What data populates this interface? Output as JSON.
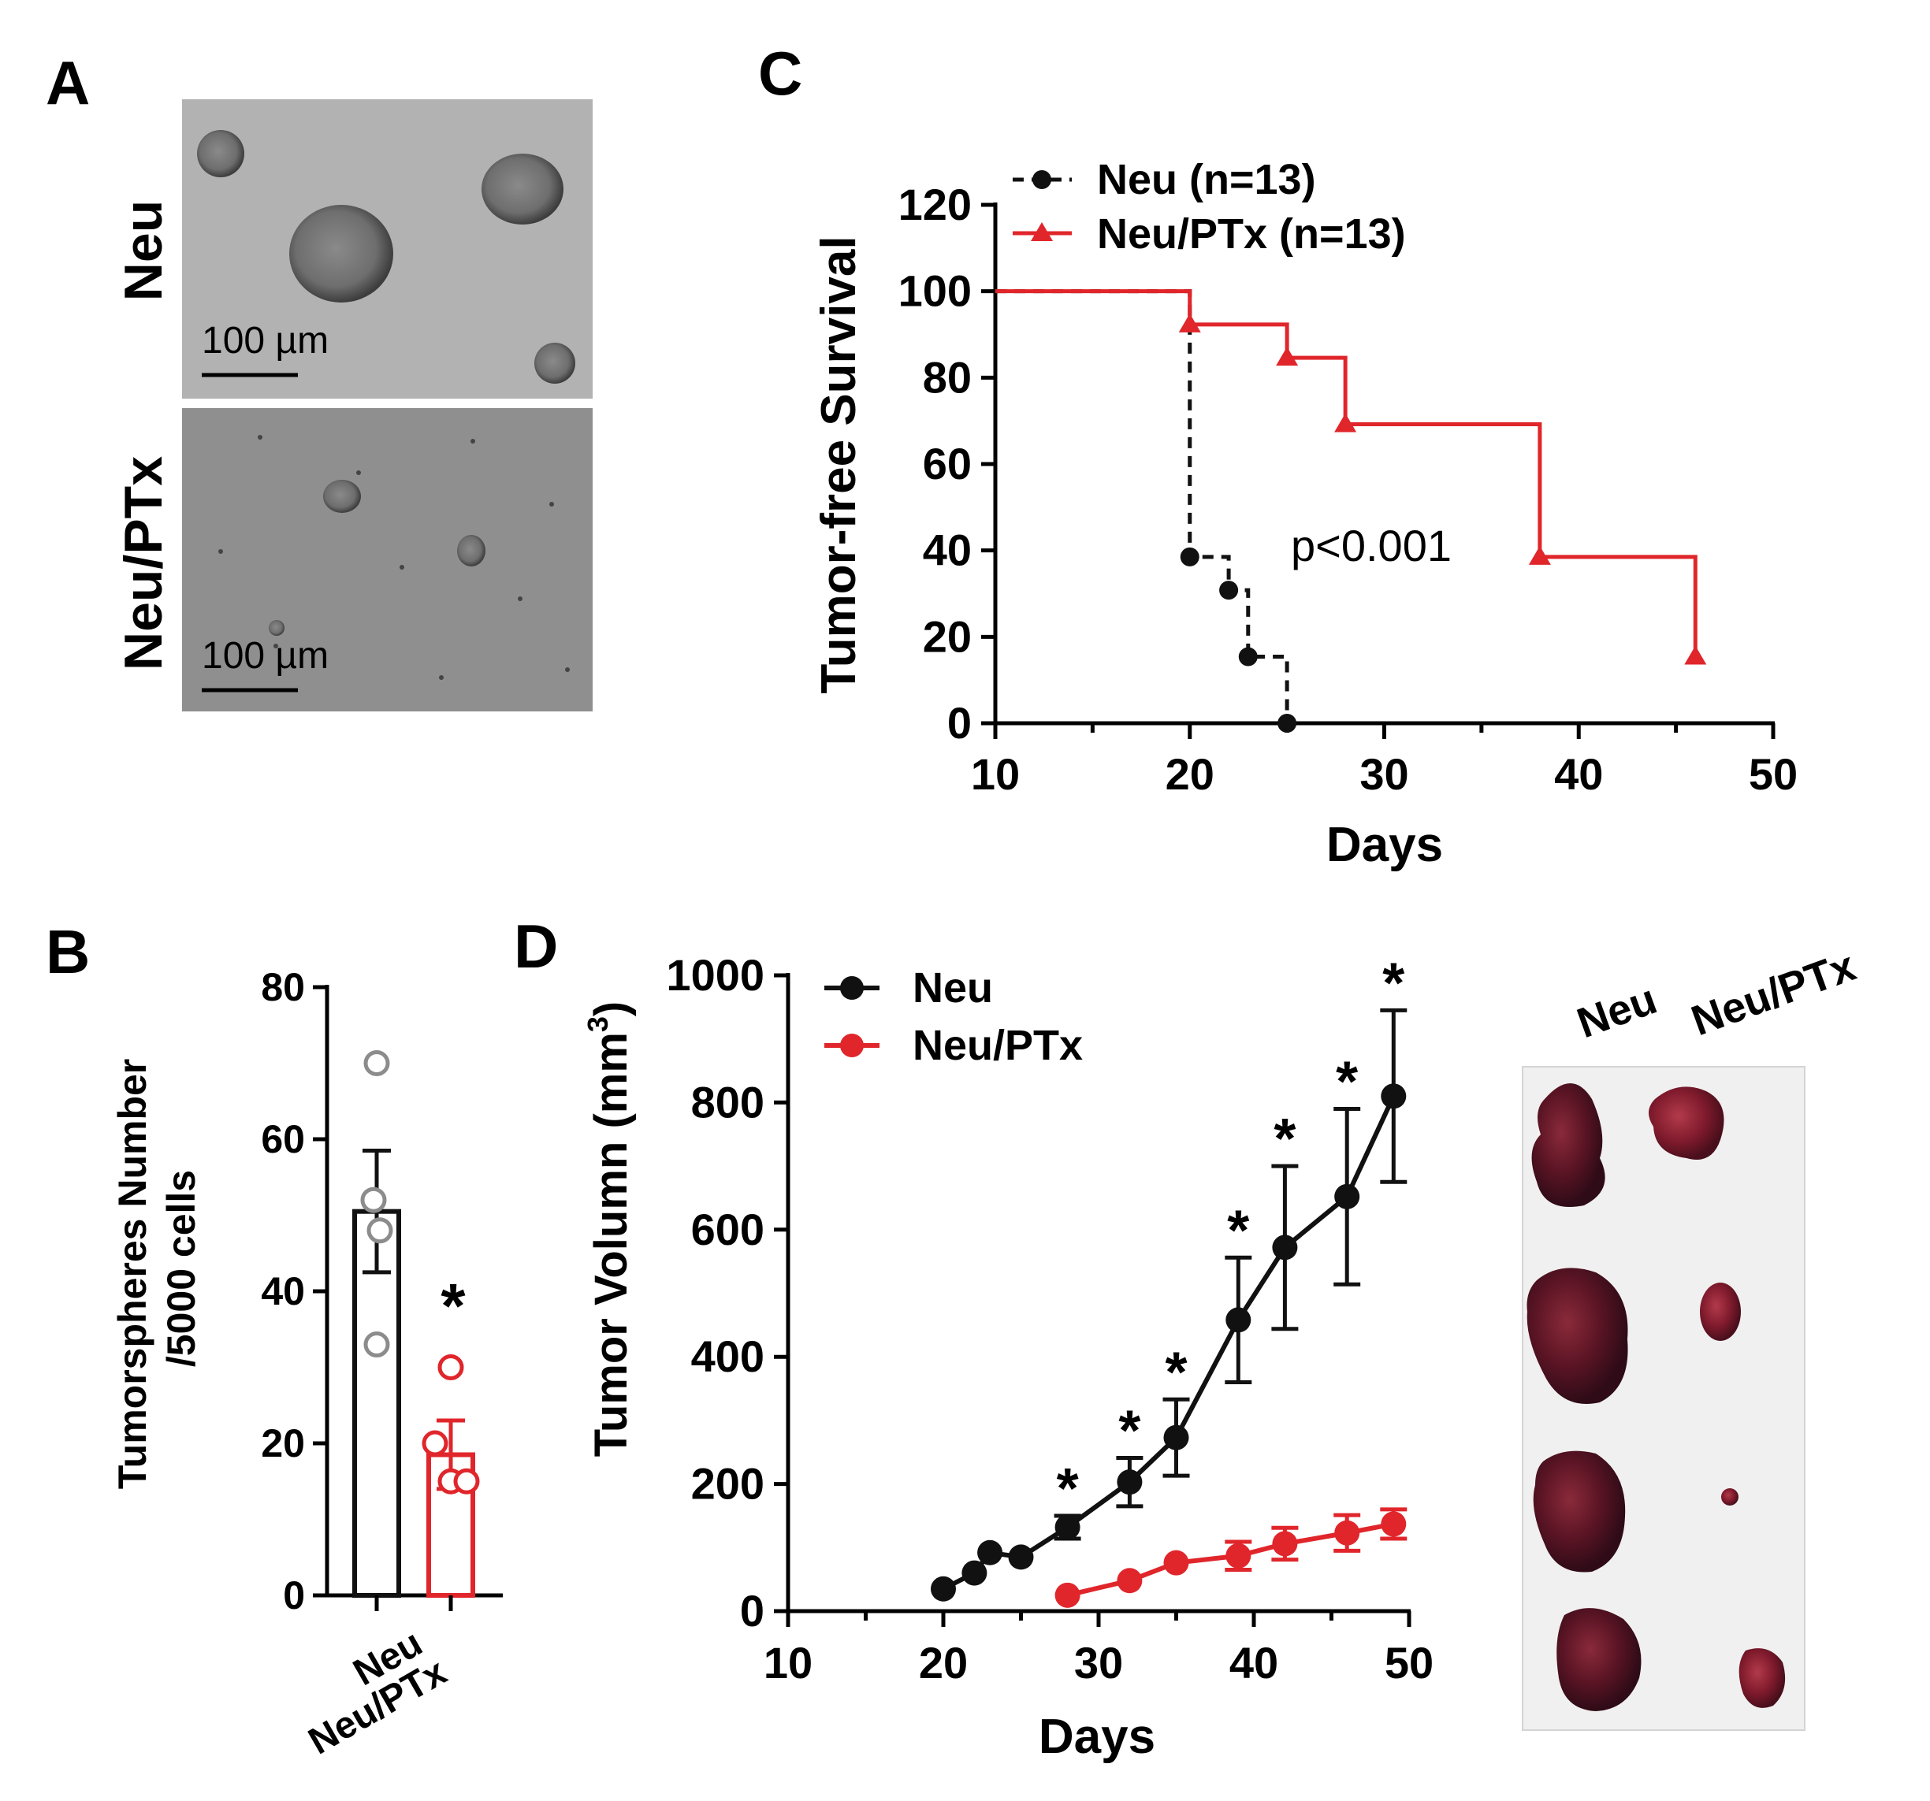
{
  "colors": {
    "neu": "#111111",
    "neu_ptx": "#e0262b",
    "gray_dot": "#8c8c8c"
  },
  "panel_a": {
    "letter": "A",
    "rows": [
      {
        "label": "Neu",
        "scale_bar": "100 µm"
      },
      {
        "label": "Neu/PTx",
        "scale_bar": "100 µm"
      }
    ]
  },
  "panel_b": {
    "letter": "B",
    "ylabel_line1": "Tumorspheres Number",
    "ylabel_line2": "/5000 cells",
    "significance": "*"
  },
  "panel_c": {
    "letter": "C",
    "legend": [
      "Neu (n=13)",
      "Neu/PTx (n=13)"
    ],
    "annotation": "p<0.001"
  },
  "panel_d": {
    "letter": "D",
    "legend": [
      "Neu",
      "Neu/PTx"
    ],
    "ylabel": "Tumor Volumn (mm",
    "ylabel_sup": "3",
    "ylabel_close": ")",
    "photo_labels": [
      "Neu",
      "Neu/PTx"
    ]
  },
  "chart_data": [
    {
      "id": "B",
      "type": "bar",
      "categories": [
        "Neu",
        "Neu/PTx"
      ],
      "values": [
        50.5,
        18.5
      ],
      "errors": [
        8,
        4.5
      ],
      "points": [
        [
          70,
          52,
          48,
          33
        ],
        [
          30,
          20,
          15,
          15
        ]
      ],
      "ylabel": "Tumorspheres Number /5000 cells",
      "ylim": [
        0,
        80
      ],
      "yticks": [
        0,
        20,
        40,
        60,
        80
      ]
    },
    {
      "id": "C",
      "type": "line",
      "subtype": "kaplan-meier",
      "xlabel": "Days",
      "ylabel": "Tumor-free Survival",
      "xlim": [
        10,
        50
      ],
      "ylim": [
        0,
        120
      ],
      "xticks": [
        10,
        20,
        30,
        40,
        50
      ],
      "yticks": [
        0,
        20,
        40,
        60,
        80,
        100,
        120
      ],
      "series": [
        {
          "name": "Neu (n=13)",
          "steps": [
            [
              10,
              100
            ],
            [
              20,
              38.5
            ],
            [
              22,
              30.8
            ],
            [
              23,
              15.4
            ],
            [
              25,
              0
            ]
          ]
        },
        {
          "name": "Neu/PTx (n=13)",
          "steps": [
            [
              10,
              100
            ],
            [
              20,
              92.3
            ],
            [
              25,
              84.6
            ],
            [
              28,
              69.2
            ],
            [
              38,
              38.5
            ],
            [
              46,
              15.4
            ]
          ]
        }
      ]
    },
    {
      "id": "D",
      "type": "line",
      "xlabel": "Days",
      "ylabel": "Tumor Volumn (mm3)",
      "xlim": [
        10,
        50
      ],
      "ylim": [
        0,
        1000
      ],
      "xticks": [
        10,
        20,
        30,
        40,
        50
      ],
      "yticks": [
        0,
        200,
        400,
        600,
        800,
        1000
      ],
      "series": [
        {
          "name": "Neu",
          "x": [
            20,
            22,
            23,
            25,
            28,
            32,
            35,
            39,
            42,
            46,
            49
          ],
          "y": [
            35,
            60,
            92,
            85,
            132,
            203,
            273,
            458,
            572,
            652,
            810
          ],
          "err": [
            0,
            0,
            0,
            0,
            18,
            38,
            60,
            98,
            128,
            138,
            135
          ]
        },
        {
          "name": "Neu/PTx",
          "x": [
            28,
            32,
            35,
            39,
            42,
            46,
            49
          ],
          "y": [
            25,
            48,
            76,
            87,
            106,
            123,
            137
          ],
          "err": [
            0,
            0,
            0,
            22,
            25,
            28,
            23
          ]
        }
      ],
      "significance_days": [
        28,
        32,
        35,
        39,
        42,
        46,
        49
      ],
      "significance_mark": "*"
    }
  ]
}
